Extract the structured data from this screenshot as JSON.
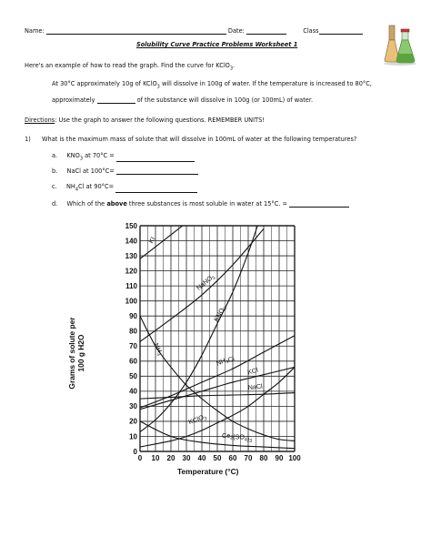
{
  "header": {
    "name_label": "Name:",
    "date_label": "Date:",
    "class_label": "Class"
  },
  "title": "Solubility Curve Practice Problems Worksheet 1",
  "intro": "Here's an example of how to read the graph. Find the curve for KClO",
  "intro_end": ".",
  "example_line1": "At 30°C approximately 10g of KClO",
  "example_line1_end": " will dissolve in 100g of water. If the temperature is increased to 80°C,",
  "example_line2_a": "approximately",
  "example_line2_b": "of the substance will dissolve in 100g (or 100mL) of water.",
  "directions_label": "Directions",
  "directions_text": ": Use the graph to answer the following questions. REMEMBER UNITS!",
  "q1_num": "1)",
  "q1_text": "What is the maximum mass of solute that will dissolve in 100mL of water at the following temperatures?",
  "items": [
    {
      "letter": "a.",
      "text": "KNO",
      "sub": "3",
      "rest": " at 70°C ="
    },
    {
      "letter": "b.",
      "text": "NaCl at 100°C=",
      "sub": "",
      "rest": ""
    },
    {
      "letter": "c.",
      "text": "NH",
      "sub": "4",
      "rest": "Cl at 90°C="
    }
  ],
  "item_d": {
    "letter": "d.",
    "pre": "Which of the ",
    "bold": "above",
    "post": " three substances is most soluble in water at 15°C. ="
  },
  "chart_data": {
    "type": "line",
    "xlabel": "Temperature (°C)",
    "ylabel": "Grams of solute per 100 g H2O",
    "xlim": [
      0,
      100
    ],
    "ylim": [
      0,
      150
    ],
    "x_ticks": [
      "0",
      "10",
      "20",
      "30",
      "40",
      "50",
      "60",
      "70",
      "80",
      "90",
      "100"
    ],
    "y_ticks": [
      "0",
      "10",
      "20",
      "30",
      "40",
      "50",
      "60",
      "70",
      "80",
      "90",
      "100",
      "110",
      "120",
      "130",
      "140",
      "150"
    ],
    "grid": true,
    "series": [
      {
        "name": "KI",
        "points": [
          [
            0,
            128
          ],
          [
            10,
            136
          ],
          [
            20,
            144
          ],
          [
            30,
            152
          ]
        ]
      },
      {
        "name": "NaNO3",
        "points": [
          [
            0,
            73
          ],
          [
            20,
            88
          ],
          [
            40,
            104
          ],
          [
            60,
            124
          ],
          [
            80,
            148
          ]
        ]
      },
      {
        "name": "KNO3",
        "points": [
          [
            0,
            13
          ],
          [
            10,
            21
          ],
          [
            20,
            32
          ],
          [
            30,
            46
          ],
          [
            40,
            64
          ],
          [
            50,
            85
          ],
          [
            60,
            106
          ],
          [
            70,
            132
          ],
          [
            76,
            150
          ]
        ]
      },
      {
        "name": "NH3",
        "points": [
          [
            0,
            90
          ],
          [
            10,
            70
          ],
          [
            20,
            56
          ],
          [
            30,
            44
          ],
          [
            40,
            35
          ],
          [
            50,
            27
          ],
          [
            60,
            20
          ],
          [
            70,
            15
          ],
          [
            80,
            11
          ],
          [
            90,
            8
          ],
          [
            100,
            7
          ]
        ]
      },
      {
        "name": "NH4Cl",
        "points": [
          [
            0,
            29
          ],
          [
            20,
            37
          ],
          [
            40,
            46
          ],
          [
            60,
            55
          ],
          [
            80,
            66
          ],
          [
            100,
            77
          ]
        ]
      },
      {
        "name": "KCl",
        "points": [
          [
            0,
            28
          ],
          [
            20,
            34
          ],
          [
            40,
            40
          ],
          [
            60,
            46
          ],
          [
            80,
            51
          ],
          [
            100,
            56
          ]
        ]
      },
      {
        "name": "NaCl",
        "points": [
          [
            0,
            35
          ],
          [
            20,
            36
          ],
          [
            40,
            37
          ],
          [
            60,
            37.5
          ],
          [
            80,
            38
          ],
          [
            100,
            39
          ]
        ]
      },
      {
        "name": "KClO3",
        "points": [
          [
            0,
            3
          ],
          [
            20,
            7
          ],
          [
            30,
            10
          ],
          [
            40,
            14
          ],
          [
            50,
            19
          ],
          [
            60,
            24
          ],
          [
            70,
            30
          ],
          [
            80,
            38
          ],
          [
            90,
            46
          ],
          [
            100,
            56
          ]
        ]
      },
      {
        "name": "Ce2(SO4)3",
        "points": [
          [
            0,
            20
          ],
          [
            20,
            10
          ],
          [
            40,
            6
          ],
          [
            60,
            4
          ],
          [
            80,
            3
          ],
          [
            100,
            2
          ]
        ]
      }
    ]
  }
}
